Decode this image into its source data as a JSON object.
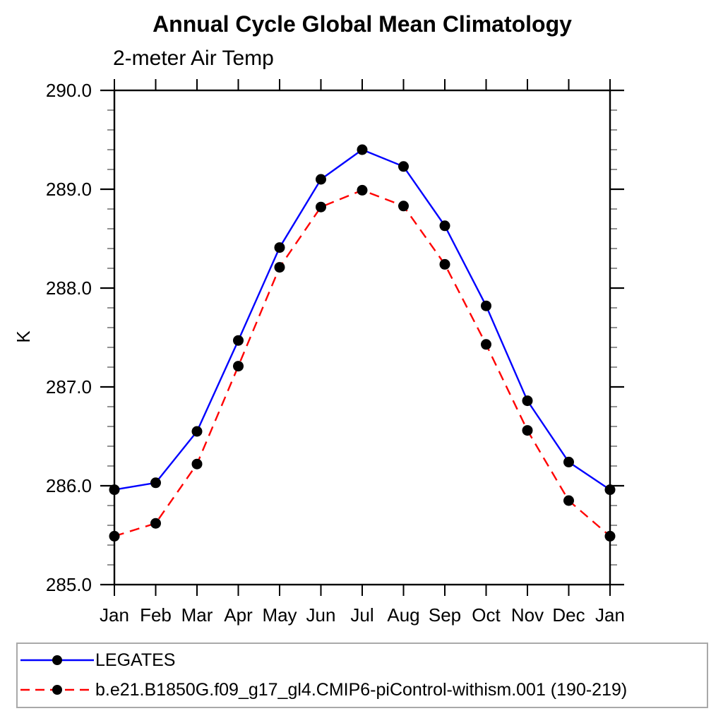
{
  "header": {
    "title": "Annual Cycle Global Mean Climatology",
    "subtitle": "2-meter Air Temp"
  },
  "chart_data": {
    "type": "line",
    "title": "Annual Cycle Global Mean Climatology",
    "subtitle": "2-meter Air Temp",
    "ylabel": "K",
    "xlabel": "",
    "x_tick_labels": [
      "Jan",
      "Feb",
      "Mar",
      "Apr",
      "May",
      "Jun",
      "Jul",
      "Aug",
      "Sep",
      "Oct",
      "Nov",
      "Dec",
      "Jan"
    ],
    "y_tick_labels": [
      "290.0",
      "289.0",
      "288.0",
      "287.0",
      "286.0",
      "285.0"
    ],
    "ylim": [
      285.0,
      290.0
    ],
    "y_major_step": 1.0,
    "y_minor_step": 0.2,
    "grid": false,
    "legend_position": "bottom-left-box",
    "frame": "boxed-with-outward-ticks",
    "marker_color": "#000000",
    "series": [
      {
        "name": "LEGATES",
        "color": "#0000ff",
        "dash": "solid",
        "marker": "filled-circle",
        "values": [
          285.96,
          286.03,
          286.55,
          287.47,
          288.41,
          289.1,
          289.4,
          289.23,
          288.63,
          287.82,
          286.86,
          286.24,
          285.96
        ]
      },
      {
        "name": "b.e21.B1850G.f09_g17_gl4.CMIP6-piControl-withism.001 (190-219)",
        "color": "#ff0000",
        "dash": "dashed",
        "marker": "filled-circle",
        "values": [
          285.49,
          285.62,
          286.22,
          287.21,
          288.21,
          288.82,
          288.99,
          288.83,
          288.24,
          287.43,
          286.56,
          285.85,
          285.49
        ]
      }
    ]
  }
}
